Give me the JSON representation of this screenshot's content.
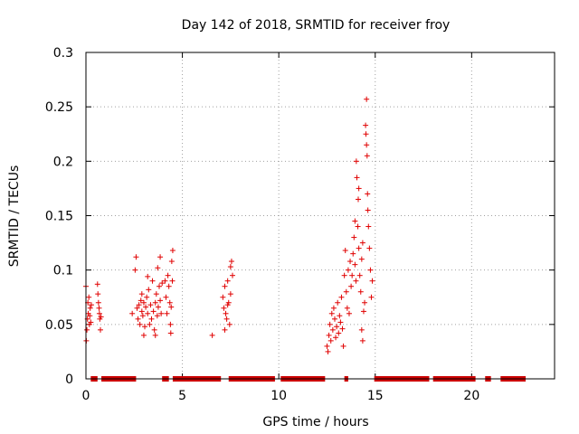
{
  "chart_data": {
    "type": "scatter",
    "title": "Day 142 of 2018, SRMTID for receiver froy",
    "xlabel": "GPS time / hours",
    "ylabel": "SRMTID / TECUs",
    "xlim": [
      0,
      24.3
    ],
    "ylim": [
      0,
      0.3
    ],
    "grid": true,
    "marker": "plus",
    "color": "#e00000",
    "x_ticks": [
      0,
      5,
      10,
      15,
      20
    ],
    "x_tick_labels": [
      "0",
      "5",
      "10",
      "15",
      "20"
    ],
    "y_ticks": [
      0,
      0.05,
      0.1,
      0.15,
      0.2,
      0.25,
      0.3
    ],
    "y_tick_labels": [
      "0",
      "0.05",
      "0.1",
      "0.15",
      "0.2",
      "0.25",
      "0.3"
    ],
    "series": [
      {
        "name": "SRMTID",
        "points": [
          [
            0.0,
            0.085
          ],
          [
            0.02,
            0.035
          ],
          [
            0.05,
            0.045
          ],
          [
            0.08,
            0.055
          ],
          [
            0.1,
            0.07
          ],
          [
            0.12,
            0.06
          ],
          [
            0.15,
            0.075
          ],
          [
            0.18,
            0.05
          ],
          [
            0.2,
            0.058
          ],
          [
            0.22,
            0.065
          ],
          [
            0.25,
            0.052
          ],
          [
            0.28,
            0.068
          ],
          [
            0.6,
            0.087
          ],
          [
            0.62,
            0.078
          ],
          [
            0.65,
            0.07
          ],
          [
            0.68,
            0.065
          ],
          [
            0.7,
            0.06
          ],
          [
            0.72,
            0.055
          ],
          [
            0.75,
            0.045
          ],
          [
            0.78,
            0.057
          ],
          [
            2.4,
            0.06
          ],
          [
            2.55,
            0.1
          ],
          [
            2.6,
            0.112
          ],
          [
            2.65,
            0.065
          ],
          [
            2.7,
            0.055
          ],
          [
            2.75,
            0.068
          ],
          [
            2.8,
            0.05
          ],
          [
            2.85,
            0.072
          ],
          [
            2.9,
            0.062
          ],
          [
            2.95,
            0.058
          ],
          [
            3.0,
            0.07
          ],
          [
            3.05,
            0.048
          ],
          [
            3.1,
            0.066
          ],
          [
            3.15,
            0.075
          ],
          [
            3.2,
            0.06
          ],
          [
            3.25,
            0.082
          ],
          [
            3.3,
            0.05
          ],
          [
            3.35,
            0.068
          ],
          [
            3.4,
            0.055
          ],
          [
            3.45,
            0.09
          ],
          [
            3.5,
            0.062
          ],
          [
            3.55,
            0.045
          ],
          [
            3.6,
            0.07
          ],
          [
            3.65,
            0.078
          ],
          [
            3.7,
            0.058
          ],
          [
            3.75,
            0.066
          ],
          [
            3.8,
            0.085
          ],
          [
            3.85,
            0.072
          ],
          [
            3.9,
            0.06
          ],
          [
            3.95,
            0.088
          ],
          [
            3.6,
            0.04
          ],
          [
            3.72,
            0.102
          ],
          [
            3.85,
            0.112
          ],
          [
            3.0,
            0.04
          ],
          [
            2.9,
            0.078
          ],
          [
            3.2,
            0.094
          ],
          [
            4.1,
            0.09
          ],
          [
            4.15,
            0.075
          ],
          [
            4.2,
            0.06
          ],
          [
            4.25,
            0.095
          ],
          [
            4.3,
            0.085
          ],
          [
            4.35,
            0.07
          ],
          [
            4.4,
            0.042
          ],
          [
            4.45,
            0.108
          ],
          [
            4.5,
            0.118
          ],
          [
            4.42,
            0.066
          ],
          [
            4.38,
            0.05
          ],
          [
            4.48,
            0.09
          ],
          [
            6.55,
            0.04
          ],
          [
            7.1,
            0.075
          ],
          [
            7.15,
            0.065
          ],
          [
            7.2,
            0.085
          ],
          [
            7.25,
            0.06
          ],
          [
            7.3,
            0.055
          ],
          [
            7.35,
            0.09
          ],
          [
            7.4,
            0.07
          ],
          [
            7.45,
            0.05
          ],
          [
            7.5,
            0.103
          ],
          [
            7.55,
            0.108
          ],
          [
            7.6,
            0.095
          ],
          [
            7.2,
            0.045
          ],
          [
            7.35,
            0.068
          ],
          [
            7.5,
            0.078
          ],
          [
            12.5,
            0.03
          ],
          [
            12.55,
            0.025
          ],
          [
            12.6,
            0.04
          ],
          [
            12.65,
            0.05
          ],
          [
            12.7,
            0.035
          ],
          [
            12.75,
            0.06
          ],
          [
            12.8,
            0.045
          ],
          [
            12.85,
            0.065
          ],
          [
            12.9,
            0.055
          ],
          [
            12.95,
            0.038
          ],
          [
            13.0,
            0.048
          ],
          [
            13.05,
            0.07
          ],
          [
            13.1,
            0.042
          ],
          [
            13.15,
            0.058
          ],
          [
            13.2,
            0.052
          ],
          [
            13.25,
            0.075
          ],
          [
            13.3,
            0.046
          ],
          [
            13.35,
            0.03
          ],
          [
            13.4,
            0.095
          ],
          [
            13.45,
            0.118
          ],
          [
            13.5,
            0.08
          ],
          [
            13.55,
            0.065
          ],
          [
            13.6,
            0.1
          ],
          [
            13.65,
            0.06
          ],
          [
            13.7,
            0.108
          ],
          [
            13.75,
            0.085
          ],
          [
            13.8,
            0.095
          ],
          [
            13.85,
            0.115
          ],
          [
            13.9,
            0.13
          ],
          [
            13.95,
            0.105
          ],
          [
            14.0,
            0.09
          ],
          [
            14.02,
            0.2
          ],
          [
            14.05,
            0.185
          ],
          [
            14.1,
            0.14
          ],
          [
            14.12,
            0.165
          ],
          [
            14.15,
            0.12
          ],
          [
            14.2,
            0.095
          ],
          [
            14.25,
            0.08
          ],
          [
            14.3,
            0.11
          ],
          [
            14.35,
            0.125
          ],
          [
            14.4,
            0.062
          ],
          [
            14.45,
            0.07
          ],
          [
            14.5,
            0.233
          ],
          [
            14.52,
            0.225
          ],
          [
            14.55,
            0.257
          ],
          [
            14.58,
            0.205
          ],
          [
            14.6,
            0.17
          ],
          [
            14.62,
            0.155
          ],
          [
            14.65,
            0.14
          ],
          [
            14.7,
            0.12
          ],
          [
            14.75,
            0.1
          ],
          [
            14.8,
            0.075
          ],
          [
            14.85,
            0.09
          ],
          [
            14.35,
            0.035
          ],
          [
            14.3,
            0.045
          ],
          [
            13.95,
            0.145
          ],
          [
            14.15,
            0.175
          ],
          [
            14.55,
            0.215
          ]
        ]
      }
    ],
    "data_gaps": [
      [
        0.25,
        0.6
      ],
      [
        0.8,
        2.6
      ],
      [
        3.95,
        4.3
      ],
      [
        4.5,
        7.0
      ],
      [
        7.4,
        9.8
      ],
      [
        10.1,
        12.4
      ],
      [
        13.4,
        13.6
      ],
      [
        14.95,
        17.8
      ],
      [
        18.0,
        20.2
      ],
      [
        20.7,
        21.0
      ],
      [
        21.5,
        22.8
      ]
    ]
  }
}
